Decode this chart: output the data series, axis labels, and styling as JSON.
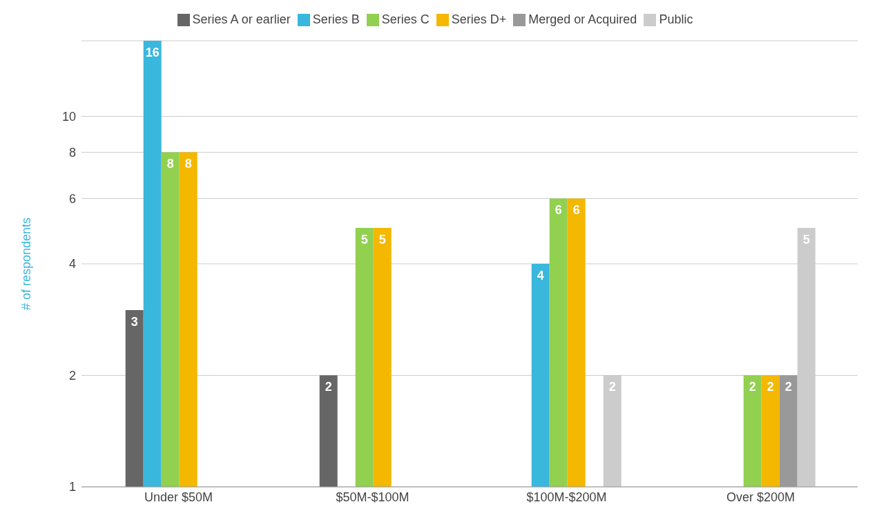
{
  "chart_data": {
    "type": "bar",
    "ylabel": "# of respondents",
    "categories": [
      "Under $50M",
      "$50M-$100M",
      "$100M-$200M",
      "Over $200M"
    ],
    "series": [
      {
        "name": "Series A or earlier",
        "color": "#666666",
        "values": [
          3,
          2,
          null,
          null
        ]
      },
      {
        "name": "Series B",
        "color": "#3ab7dc",
        "values": [
          16,
          null,
          4,
          null
        ]
      },
      {
        "name": "Series C",
        "color": "#92d050",
        "values": [
          8,
          5,
          6,
          2
        ]
      },
      {
        "name": "Series D+",
        "color": "#f4b800",
        "values": [
          8,
          5,
          6,
          2
        ]
      },
      {
        "name": "Merged or Acquired",
        "color": "#999999",
        "values": [
          null,
          null,
          null,
          2
        ]
      },
      {
        "name": "Public",
        "color": "#cccccc",
        "values": [
          null,
          null,
          2,
          5
        ]
      }
    ],
    "log": true,
    "ylim": [
      1,
      16
    ],
    "yticks": [
      1,
      2,
      4,
      6,
      8,
      10
    ],
    "grid": "y",
    "legend": "top",
    "data_labels": true
  }
}
